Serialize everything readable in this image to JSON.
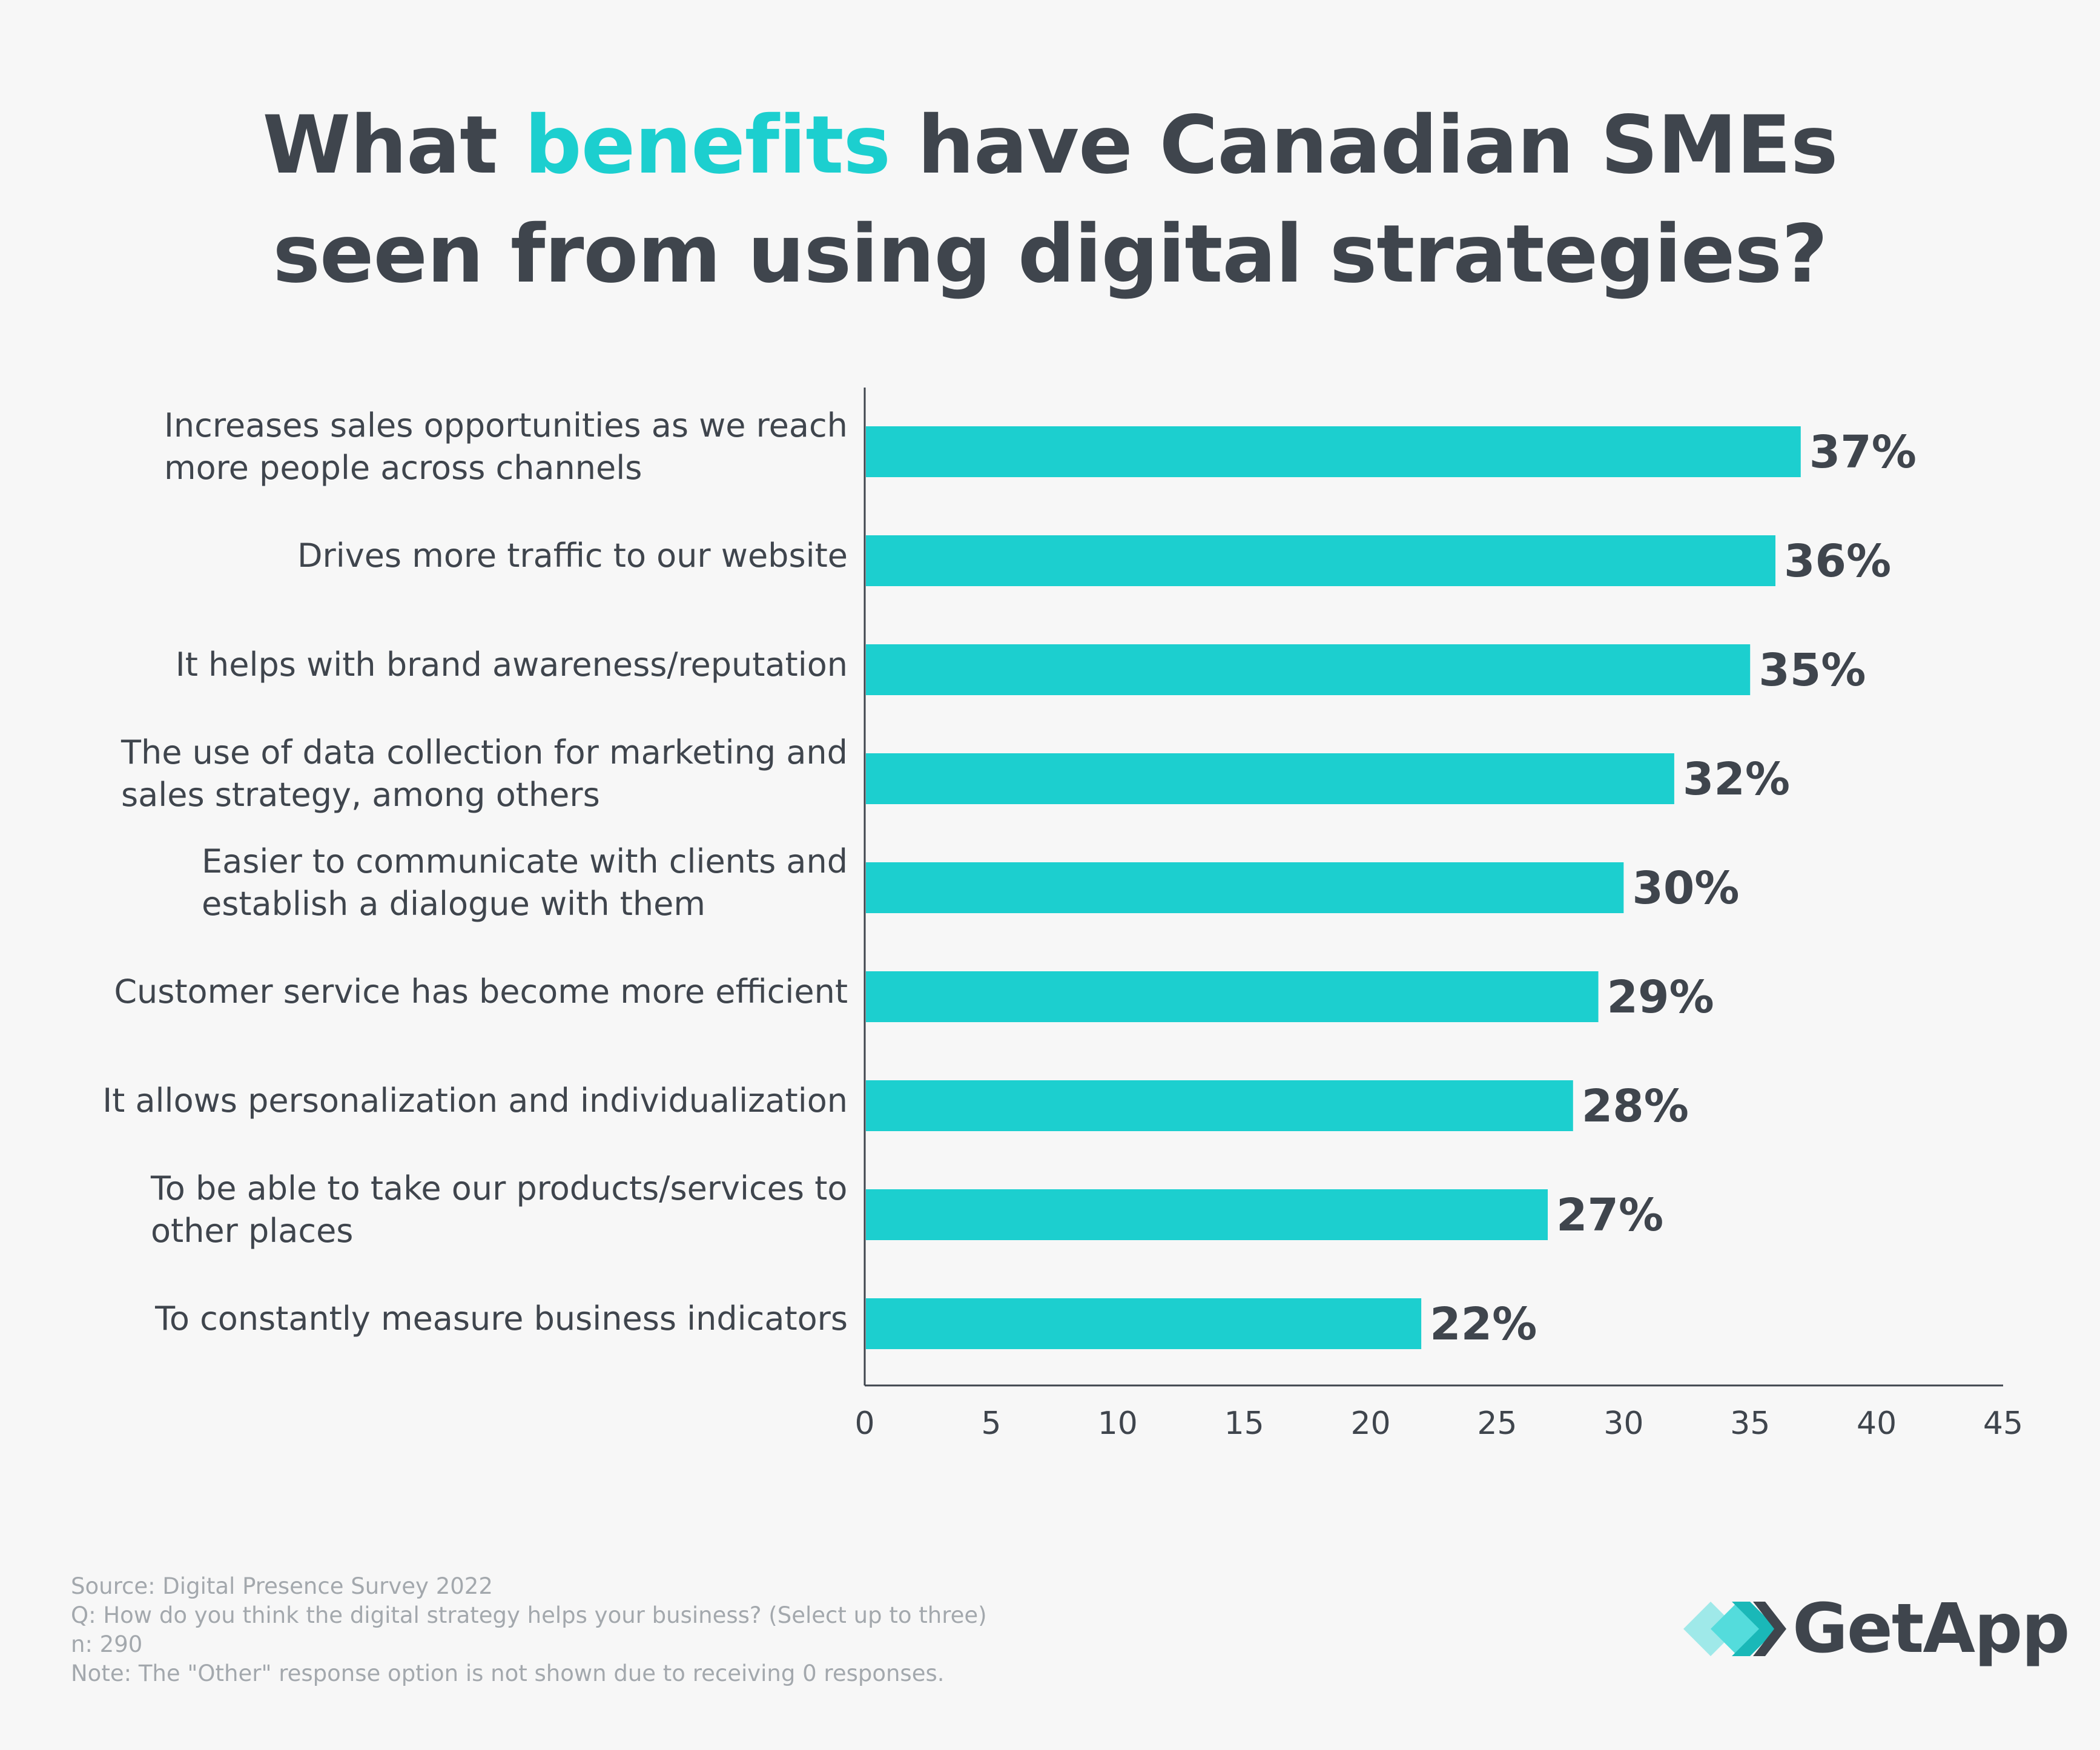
{
  "title": {
    "line1_pre": "What ",
    "line1_highlight": "benefits",
    "line1_post": " have Canadian SMEs",
    "line2": "seen from using digital strategies?"
  },
  "colors": {
    "bar": "#1ccfcf",
    "text": "#3f454d",
    "muted": "#a3a8ad",
    "highlight": "#1ccfcf"
  },
  "chart_data": {
    "type": "bar",
    "orientation": "horizontal",
    "categories": [
      "Increases sales opportunities as we reach more people across channels",
      "Drives more traffic to our website",
      "It helps with brand awareness/reputation",
      "The use of data collection for marketing and sales strategy, among others",
      "Easier to communicate with clients and establish a dialogue with them",
      "Customer service has become more efficient",
      "It allows personalization and individualization",
      "To be able to take our products/services to other places",
      "To constantly measure business indicators"
    ],
    "category_lines": [
      [
        "Increases sales opportunities as we reach",
        "more people across channels"
      ],
      [
        "Drives more traffic to our website"
      ],
      [
        "It helps with brand awareness/reputation"
      ],
      [
        "The use of data collection for marketing and",
        "sales strategy, among others"
      ],
      [
        "Easier to communicate with clients and",
        "establish a dialogue with them"
      ],
      [
        "Customer service has become more efficient"
      ],
      [
        "It allows personalization and individualization"
      ],
      [
        "To be able to take our products/services to",
        "other places"
      ],
      [
        "To constantly measure business indicators"
      ]
    ],
    "values": [
      37,
      36,
      35,
      32,
      30,
      29,
      28,
      27,
      22
    ],
    "value_labels": [
      "37%",
      "36%",
      "35%",
      "32%",
      "30%",
      "29%",
      "28%",
      "27%",
      "22%"
    ],
    "xlim": [
      0,
      45
    ],
    "xticks": [
      0,
      5,
      10,
      15,
      20,
      25,
      30,
      35,
      40,
      45
    ],
    "xlabel": "",
    "ylabel": "",
    "grid": false
  },
  "footer": {
    "source": "Source: Digital Presence Survey 2022",
    "question": "Q: How do you think the digital strategy helps your business? (Select up to three)",
    "n": "n: 290",
    "note": "Note: The \"Other\" response option is not shown due to receiving 0 responses."
  },
  "logo": {
    "text": "GetApp",
    "icon": "getapp-chevrons-icon"
  }
}
